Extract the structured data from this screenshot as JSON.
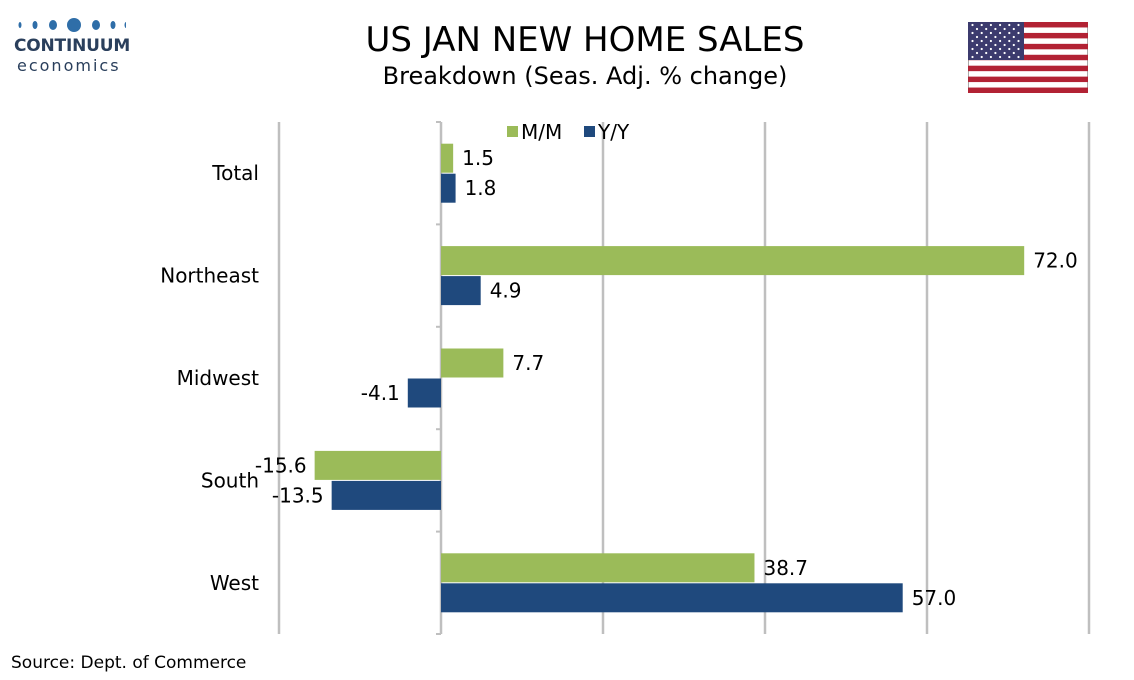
{
  "brand": {
    "name": "CONTINUUM",
    "tagline": "economics"
  },
  "header": {
    "title": "US JAN NEW HOME SALES",
    "subtitle": "Breakdown (Seas. Adj. % change)",
    "flag_icon": "us-flag-icon"
  },
  "colors": {
    "mm": "#9bbb59",
    "yy": "#1f497d",
    "grid": "#bfbfbf",
    "brand": "#2a3f5c"
  },
  "chart_data": {
    "type": "bar",
    "orientation": "horizontal",
    "categories": [
      "Total",
      "Northeast",
      "Midwest",
      "South",
      "West"
    ],
    "series": [
      {
        "name": "M/M",
        "values": [
          1.5,
          72.0,
          7.7,
          -15.6,
          38.7
        ]
      },
      {
        "name": "Y/Y",
        "values": [
          1.8,
          4.9,
          -4.1,
          -13.5,
          57.0
        ]
      }
    ],
    "xlim": [
      -20,
      80
    ],
    "grid": true,
    "legend": "top",
    "data_labels": true
  },
  "footer": {
    "source": "Source: Dept. of Commerce"
  }
}
